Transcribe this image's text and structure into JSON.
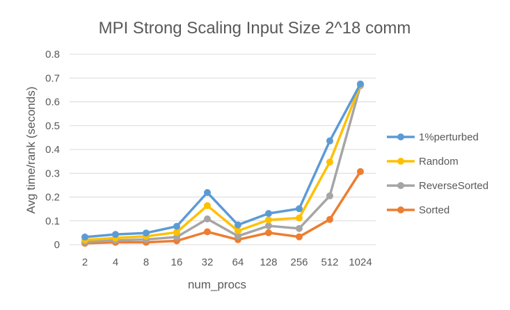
{
  "chart_data": {
    "type": "line",
    "title": "MPI Strong Scaling Input Size 2^18 comm",
    "xlabel": "num_procs",
    "ylabel": "Avg time/rank (seconds)",
    "categories": [
      "2",
      "4",
      "8",
      "16",
      "32",
      "64",
      "128",
      "256",
      "512",
      "1024"
    ],
    "ylim": [
      0,
      0.8
    ],
    "yticks": [
      "0",
      "0.1",
      "0.2",
      "0.3",
      "0.4",
      "0.5",
      "0.6",
      "0.7",
      "0.8"
    ],
    "grid": "horizontal",
    "legend_position": "right",
    "series": [
      {
        "name": "1%perturbed",
        "color": "#5b9bd5",
        "values": [
          0.032,
          0.043,
          0.049,
          0.077,
          0.219,
          0.083,
          0.131,
          0.151,
          0.436,
          0.675
        ]
      },
      {
        "name": "Random",
        "color": "#ffc000",
        "values": [
          0.02,
          0.028,
          0.035,
          0.052,
          0.164,
          0.058,
          0.104,
          0.112,
          0.347,
          0.672
        ]
      },
      {
        "name": "ReverseSorted",
        "color": "#a5a5a5",
        "values": [
          0.012,
          0.018,
          0.022,
          0.032,
          0.108,
          0.036,
          0.079,
          0.068,
          0.205,
          0.668
        ]
      },
      {
        "name": "Sorted",
        "color": "#ed7d31",
        "values": [
          0.006,
          0.01,
          0.01,
          0.016,
          0.054,
          0.021,
          0.05,
          0.033,
          0.106,
          0.307
        ]
      }
    ]
  }
}
